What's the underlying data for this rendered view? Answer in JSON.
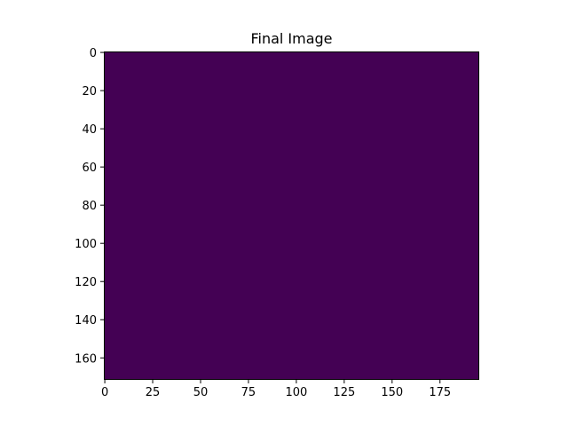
{
  "chart_data": {
    "type": "heatmap",
    "title": "Final Image",
    "xlabel": "",
    "ylabel": "",
    "xlim": [
      -0.5,
      195.5
    ],
    "ylim": [
      171.5,
      -0.5
    ],
    "y_inverted": true,
    "grid": false,
    "legend": "none",
    "x_ticks": [
      0,
      25,
      50,
      75,
      100,
      125,
      150,
      175
    ],
    "x_tick_labels": [
      "0",
      "25",
      "50",
      "75",
      "100",
      "125",
      "150",
      "175"
    ],
    "y_ticks": [
      0,
      20,
      40,
      60,
      80,
      100,
      120,
      140,
      160
    ],
    "y_tick_labels": [
      "0",
      "20",
      "40",
      "60",
      "80",
      "100",
      "120",
      "140",
      "160"
    ],
    "image_shape": [
      172,
      196
    ],
    "values": "uniform",
    "fill_color": "#440154",
    "colormap": "viridis"
  }
}
